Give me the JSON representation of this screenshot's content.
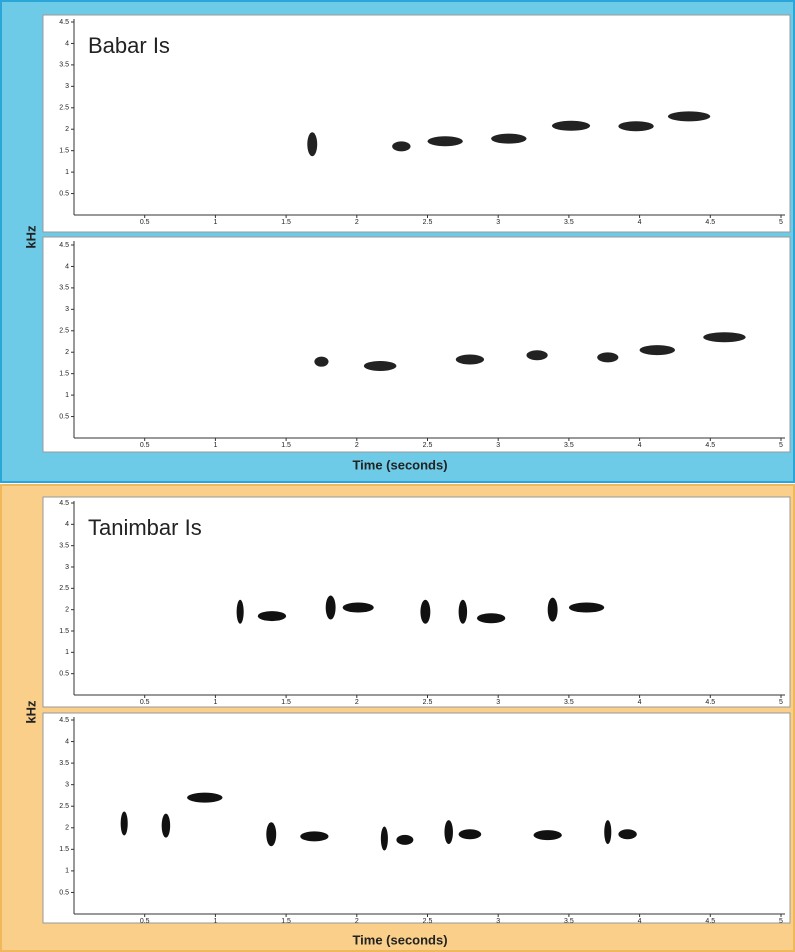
{
  "chart_data": [
    {
      "type": "spectrogram",
      "title": "Babar Is",
      "ylabel": "kHz",
      "x": [
        1.65,
        2.25,
        2.5,
        2.95,
        3.38,
        3.85,
        4.2
      ],
      "x_end": [
        1.72,
        2.38,
        2.75,
        3.2,
        3.65,
        4.1,
        4.5
      ],
      "values": [
        1.65,
        1.6,
        1.72,
        1.78,
        2.08,
        2.07,
        2.3
      ],
      "color": "#222",
      "xlim": [
        0,
        5
      ],
      "ylim": [
        0,
        4.5
      ],
      "xticks": [
        0.5,
        1,
        1.5,
        2,
        2.5,
        3,
        3.5,
        4,
        4.5,
        5
      ],
      "yticks": [
        0.5,
        1,
        1.5,
        2,
        2.5,
        3,
        3.5,
        4,
        4.5
      ]
    },
    {
      "type": "spectrogram",
      "xlabel": "Time (seconds)",
      "x": [
        1.7,
        2.05,
        2.7,
        3.2,
        3.7,
        4.0,
        4.45
      ],
      "x_end": [
        1.8,
        2.28,
        2.9,
        3.35,
        3.85,
        4.25,
        4.75
      ],
      "values": [
        1.78,
        1.68,
        1.83,
        1.93,
        1.88,
        2.05,
        2.35
      ],
      "color": "#222",
      "xlim": [
        0,
        5
      ],
      "ylim": [
        0,
        4.5
      ],
      "xticks": [
        0.5,
        1,
        1.5,
        2,
        2.5,
        3,
        3.5,
        4,
        4.5,
        5
      ],
      "yticks": [
        0.5,
        1,
        1.5,
        2,
        2.5,
        3,
        3.5,
        4,
        4.5
      ]
    },
    {
      "type": "spectrogram",
      "title": "Tanimbar Is",
      "ylabel": "kHz",
      "x": [
        1.15,
        1.3,
        1.78,
        1.9,
        2.45,
        2.72,
        2.85,
        3.35,
        3.5
      ],
      "x_end": [
        1.2,
        1.5,
        1.85,
        2.12,
        2.52,
        2.78,
        3.05,
        3.42,
        3.75
      ],
      "values": [
        1.95,
        1.85,
        2.05,
        2.05,
        1.95,
        1.95,
        1.8,
        2.0,
        2.05
      ],
      "color": "#111",
      "xlim": [
        0,
        5
      ],
      "ylim": [
        0,
        4.5
      ],
      "xticks": [
        0.5,
        1,
        1.5,
        2,
        2.5,
        3,
        3.5,
        4,
        4.5,
        5
      ],
      "yticks": [
        0.5,
        1,
        1.5,
        2,
        2.5,
        3,
        3.5,
        4,
        4.5
      ]
    },
    {
      "type": "spectrogram",
      "xlabel": "Time (seconds)",
      "x": [
        0.33,
        0.62,
        0.8,
        1.36,
        1.6,
        2.17,
        2.28,
        2.62,
        2.72,
        3.25,
        3.75,
        3.85
      ],
      "x_end": [
        0.38,
        0.68,
        1.05,
        1.43,
        1.8,
        2.22,
        2.4,
        2.68,
        2.88,
        3.45,
        3.8,
        3.98
      ],
      "values": [
        2.1,
        2.05,
        2.7,
        1.85,
        1.8,
        1.75,
        1.72,
        1.9,
        1.85,
        1.83,
        1.9,
        1.85
      ],
      "color": "#111",
      "xlim": [
        0,
        5
      ],
      "ylim": [
        0,
        4.5
      ],
      "xticks": [
        0.5,
        1,
        1.5,
        2,
        2.5,
        3,
        3.5,
        4,
        4.5,
        5
      ],
      "yticks": [
        0.5,
        1,
        1.5,
        2,
        2.5,
        3,
        3.5,
        4,
        4.5
      ]
    }
  ]
}
